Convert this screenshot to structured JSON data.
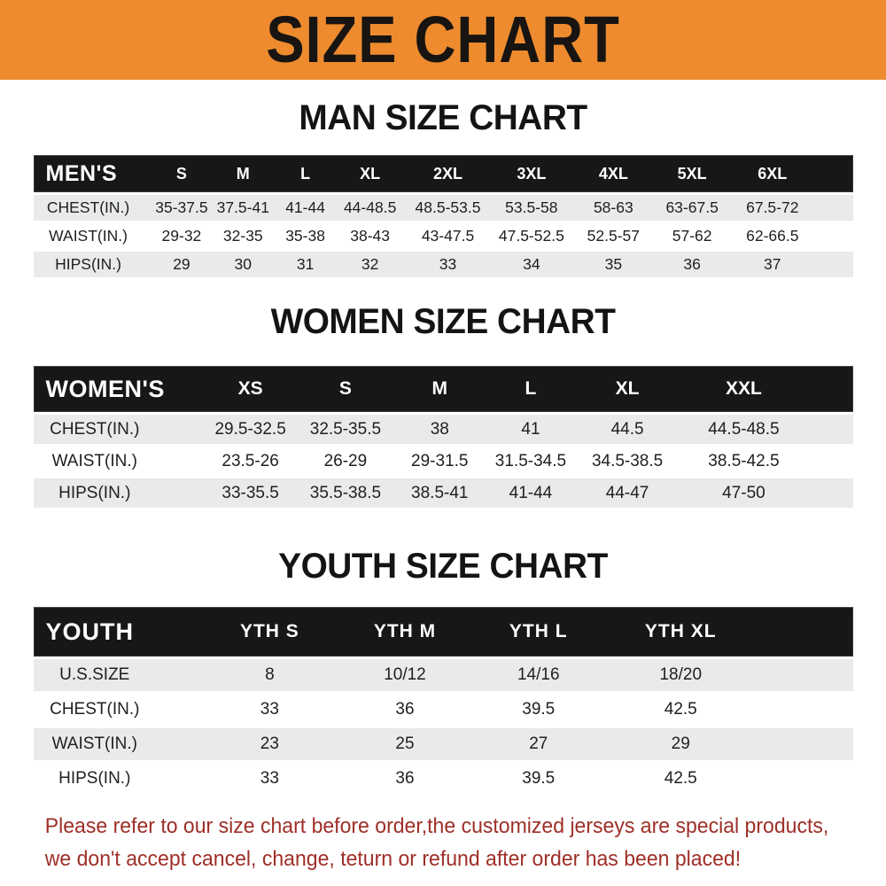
{
  "banner": {
    "title": "SIZE CHART"
  },
  "sections": [
    {
      "title": "MAN SIZE CHART",
      "header_label": "MEN'S",
      "columns": [
        "S",
        "M",
        "L",
        "XL",
        "2XL",
        "3XL",
        "4XL",
        "5XL",
        "6XL"
      ],
      "rows": [
        {
          "label": "CHEST(IN.)",
          "values": [
            "35-37.5",
            "37.5-41",
            "41-44",
            "44-48.5",
            "48.5-53.5",
            "53.5-58",
            "58-63",
            "63-67.5",
            "67.5-72"
          ]
        },
        {
          "label": "WAIST(IN.)",
          "values": [
            "29-32",
            "32-35",
            "35-38",
            "38-43",
            "43-47.5",
            "47.5-52.5",
            "52.5-57",
            "57-62",
            "62-66.5"
          ]
        },
        {
          "label": "HIPS(IN.)",
          "values": [
            "29",
            "30",
            "31",
            "32",
            "33",
            "34",
            "35",
            "36",
            "37"
          ]
        }
      ]
    },
    {
      "title": "WOMEN SIZE CHART",
      "header_label": "WOMEN'S",
      "columns": [
        "XS",
        "S",
        "M",
        "L",
        "XL",
        "XXL"
      ],
      "rows": [
        {
          "label": "CHEST(IN.)",
          "values": [
            "29.5-32.5",
            "32.5-35.5",
            "38",
            "41",
            "44.5",
            "44.5-48.5"
          ]
        },
        {
          "label": "WAIST(IN.)",
          "values": [
            "23.5-26",
            "26-29",
            "29-31.5",
            "31.5-34.5",
            "34.5-38.5",
            "38.5-42.5"
          ]
        },
        {
          "label": "HIPS(IN.)",
          "values": [
            "33-35.5",
            "35.5-38.5",
            "38.5-41",
            "41-44",
            "44-47",
            "47-50"
          ]
        }
      ]
    },
    {
      "title": "YOUTH SIZE CHART",
      "header_label": "YOUTH",
      "columns": [
        "YTH S",
        "YTH M",
        "YTH L",
        "YTH XL"
      ],
      "rows": [
        {
          "label": "U.S.SIZE",
          "values": [
            "8",
            "10/12",
            "14/16",
            "18/20"
          ]
        },
        {
          "label": "CHEST(IN.)",
          "values": [
            "33",
            "36",
            "39.5",
            "42.5"
          ]
        },
        {
          "label": "WAIST(IN.)",
          "values": [
            "23",
            "25",
            "27",
            "29"
          ]
        },
        {
          "label": "HIPS(IN.)",
          "values": [
            "33",
            "36",
            "39.5",
            "42.5"
          ]
        }
      ]
    }
  ],
  "footer": {
    "line1": "Please refer to our size chart before order,the customized jerseys are special products,",
    "line2": "we don't accept cancel, change, teturn or refund after order has been placed!"
  },
  "colors": {
    "banner-bg": "#ED8B2E",
    "header-bg": "#171717",
    "stripe-bg": "#E8EAEB",
    "footer-red": "#9E2F28"
  }
}
